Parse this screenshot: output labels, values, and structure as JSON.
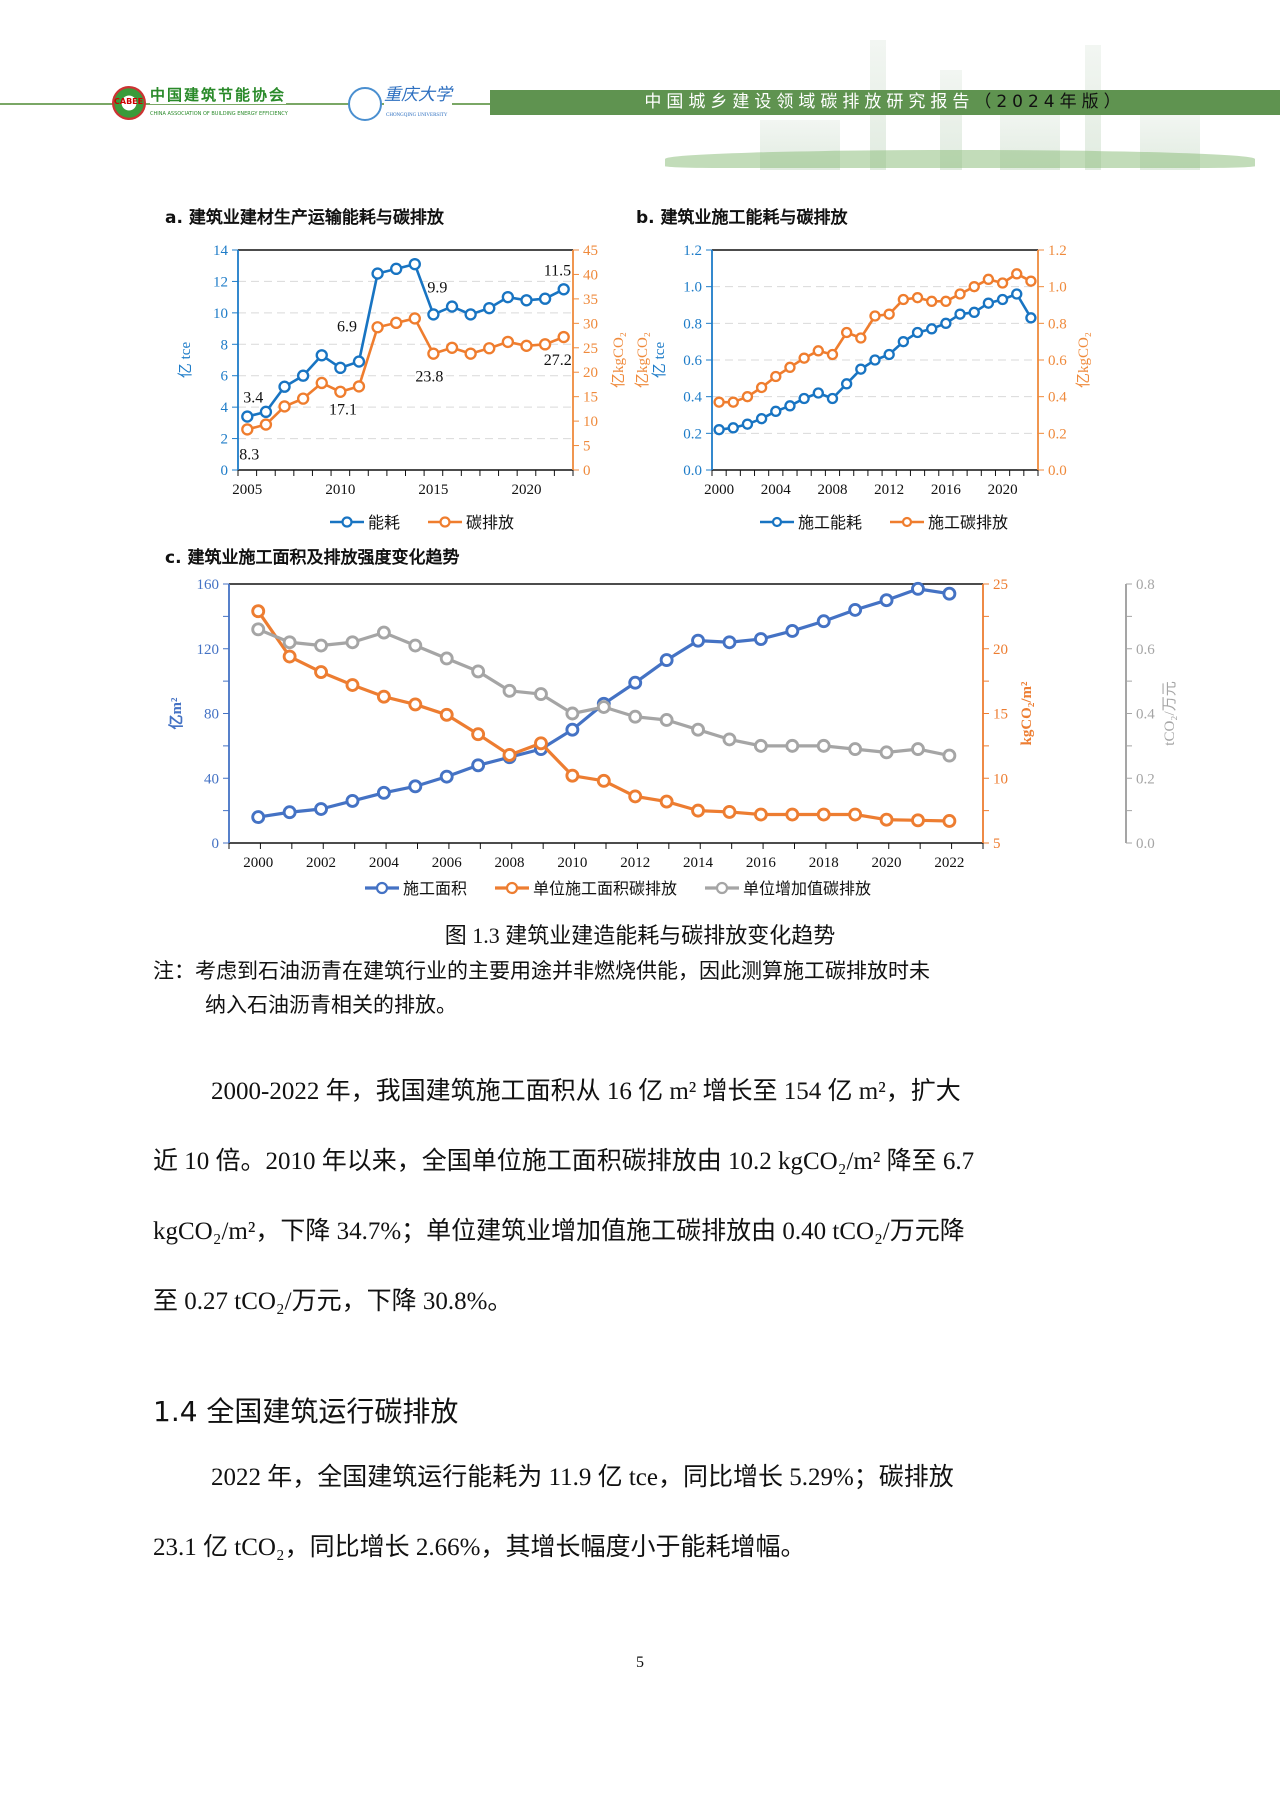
{
  "header": {
    "org1_logo_text": "CABEE",
    "org1_name": "中国建筑节能协会",
    "org1_name_en": "CHINA ASSOCIATION OF BUILDING ENERGY EFFICIENCY",
    "org2_name": "重庆大学",
    "org2_name_en": "CHONGQING UNIVERSITY",
    "report_title": "中国城乡建设领域碳排放研究报告",
    "report_edition": "（2024年版）",
    "bar_color": "#5f9350"
  },
  "chart_data": [
    {
      "type": "line",
      "title": "a. 建筑业建材生产运输能耗与碳排放",
      "categories": [
        2005,
        2006,
        2007,
        2008,
        2009,
        2010,
        2011,
        2012,
        2013,
        2014,
        2015,
        2016,
        2017,
        2018,
        2019,
        2020,
        2021,
        2022
      ],
      "x_tick_labels": [
        "2005",
        "2010",
        "2015",
        "2020"
      ],
      "axes": [
        {
          "side": "left",
          "label": "亿 tce",
          "ylim": [
            0,
            14
          ],
          "ticks": [
            0,
            2,
            4,
            6,
            8,
            10,
            12,
            14
          ],
          "color": "#1e7cc8"
        },
        {
          "side": "right",
          "label": "亿kgCO₂",
          "ylim": [
            0,
            45
          ],
          "ticks": [
            0,
            5,
            10,
            15,
            20,
            25,
            30,
            35,
            40,
            45
          ],
          "color": "#ef8a3c"
        }
      ],
      "series": [
        {
          "name": "能耗",
          "axis": 0,
          "color": "#1874c2",
          "values": [
            3.4,
            3.7,
            5.3,
            6.0,
            7.3,
            6.5,
            6.9,
            12.5,
            12.8,
            13.1,
            9.9,
            10.4,
            9.9,
            10.3,
            11.0,
            10.8,
            10.9,
            11.5
          ]
        },
        {
          "name": "碳排放",
          "axis": 1,
          "color": "#ef7d2e",
          "values": [
            8.3,
            9.3,
            13.0,
            14.6,
            17.8,
            16.0,
            17.1,
            29.2,
            30.1,
            31.0,
            23.8,
            25.0,
            23.8,
            24.9,
            26.2,
            25.4,
            25.7,
            27.2
          ]
        }
      ],
      "annotations": [
        {
          "series": 0,
          "index": 0,
          "text": "3.4"
        },
        {
          "series": 0,
          "index": 6,
          "text": "6.9"
        },
        {
          "series": 0,
          "index": 10,
          "text": "9.9"
        },
        {
          "series": 0,
          "index": 17,
          "text": "11.5"
        },
        {
          "series": 1,
          "index": 0,
          "text": "8.3"
        },
        {
          "series": 1,
          "index": 6,
          "text": "17.1"
        },
        {
          "series": 1,
          "index": 10,
          "text": "23.8"
        },
        {
          "series": 1,
          "index": 17,
          "text": "27.2"
        }
      ],
      "grid": true,
      "legend": "bottom"
    },
    {
      "type": "line",
      "title": "b. 建筑业施工能耗与碳排放",
      "categories": [
        2000,
        2001,
        2002,
        2003,
        2004,
        2005,
        2006,
        2007,
        2008,
        2009,
        2010,
        2011,
        2012,
        2013,
        2014,
        2015,
        2016,
        2017,
        2018,
        2019,
        2020,
        2021,
        2022
      ],
      "x_tick_labels": [
        "2000",
        "2004",
        "2008",
        "2012",
        "2016",
        "2020"
      ],
      "axes": [
        {
          "side": "left",
          "label": "亿 tce",
          "label2": "亿kgCO₂",
          "ylim": [
            0,
            1.2
          ],
          "ticks": [
            "0.0",
            "0.2",
            "0.4",
            "0.6",
            "0.8",
            "1.0",
            "1.2"
          ],
          "color": "#1e7cc8"
        },
        {
          "side": "right",
          "label": "亿kgCO₂",
          "ylim": [
            0,
            1.2
          ],
          "ticks": [
            "0.0",
            "0.2",
            "0.4",
            "0.6",
            "0.8",
            "1.0",
            "1.2"
          ],
          "color": "#ef8a3c"
        }
      ],
      "series": [
        {
          "name": "施工能耗",
          "axis": 0,
          "color": "#1874c2",
          "values": [
            0.22,
            0.23,
            0.25,
            0.28,
            0.32,
            0.35,
            0.39,
            0.42,
            0.39,
            0.47,
            0.55,
            0.6,
            0.63,
            0.7,
            0.75,
            0.77,
            0.8,
            0.85,
            0.86,
            0.91,
            0.93,
            0.96,
            0.83
          ]
        },
        {
          "name": "施工碳排放",
          "axis": 1,
          "color": "#ef7d2e",
          "values": [
            0.37,
            0.37,
            0.4,
            0.45,
            0.51,
            0.56,
            0.61,
            0.65,
            0.63,
            0.75,
            0.72,
            0.84,
            0.85,
            0.93,
            0.94,
            0.92,
            0.92,
            0.96,
            1.0,
            1.04,
            1.02,
            1.07,
            1.03
          ]
        }
      ],
      "grid": true,
      "legend": "bottom"
    },
    {
      "type": "line",
      "title": "c. 建筑业施工面积及排放强度变化趋势",
      "categories": [
        2000,
        2001,
        2002,
        2003,
        2004,
        2005,
        2006,
        2007,
        2008,
        2009,
        2010,
        2011,
        2012,
        2013,
        2014,
        2015,
        2016,
        2017,
        2018,
        2019,
        2020,
        2021,
        2022
      ],
      "x_tick_labels": [
        "2000",
        "2002",
        "2004",
        "2006",
        "2008",
        "2010",
        "2012",
        "2014",
        "2016",
        "2018",
        "2020",
        "2022"
      ],
      "axes": [
        {
          "side": "left",
          "label": "亿m²",
          "ylim": [
            0,
            160
          ],
          "ticks": [
            0,
            40,
            80,
            120,
            160
          ],
          "color": "#4472c4"
        },
        {
          "side": "right",
          "label": "kgCO₂/m²",
          "ylim": [
            5,
            25
          ],
          "ticks": [
            5,
            10,
            15,
            20,
            25
          ],
          "color": "#ed7d31"
        },
        {
          "side": "right2",
          "label": "tCO₂/万元",
          "ylim": [
            0,
            0.8
          ],
          "ticks": [
            "0.0",
            "0.2",
            "0.4",
            "0.6",
            "0.8"
          ],
          "color": "#a5a5a5"
        }
      ],
      "series": [
        {
          "name": "施工面积",
          "axis": 0,
          "color": "#4472c4",
          "values": [
            16,
            19,
            21,
            26,
            31,
            35,
            41,
            48,
            53,
            58,
            70,
            86,
            99,
            113,
            125,
            124,
            126,
            131,
            137,
            144,
            150,
            157,
            154
          ]
        },
        {
          "name": "单位施工面积碳排放",
          "axis": 1,
          "color": "#ed7d31",
          "values": [
            22.9,
            19.4,
            18.2,
            17.2,
            16.3,
            15.7,
            14.9,
            13.4,
            11.8,
            12.7,
            10.2,
            9.8,
            8.6,
            8.2,
            7.5,
            7.4,
            7.2,
            7.2,
            7.2,
            7.2,
            6.8,
            6.75,
            6.7
          ]
        },
        {
          "name": "单位增加值碳排放",
          "axis": 2,
          "color": "#a5a5a5",
          "values": [
            0.66,
            0.62,
            0.61,
            0.62,
            0.65,
            0.61,
            0.57,
            0.53,
            0.47,
            0.46,
            0.4,
            0.42,
            0.39,
            0.38,
            0.35,
            0.32,
            0.3,
            0.3,
            0.3,
            0.29,
            0.28,
            0.29,
            0.27
          ]
        }
      ],
      "grid": false,
      "legend": "bottom"
    }
  ],
  "figure_caption": "图 1.3 建筑业建造能耗与碳排放变化趋势",
  "note": {
    "line1": "注：考虑到石油沥青在建筑行业的主要用途并非燃烧供能，因此测算施工碳排放时未",
    "line2": "纳入石油沥青相关的排放。"
  },
  "paragraph1": [
    "2000-2022 年，我国建筑施工面积从 16 亿 m² 增长至 154 亿 m²，扩大",
    "近 10 倍。2010 年以来，全国单位施工面积碳排放由 10.2 kgCO₂/m² 降至 6.7",
    "kgCO₂/m²，下降 34.7%；单位建筑业增加值施工碳排放由 0.40 tCO₂/万元降",
    "至 0.27 tCO₂/万元，下降 30.8%。"
  ],
  "section_heading": "1.4 全国建筑运行碳排放",
  "paragraph2": [
    "2022 年，全国建筑运行能耗为 11.9 亿 tce，同比增长 5.29%；碳排放",
    "23.1 亿 tCO₂，同比增长 2.66%，其增长幅度小于能耗增幅。"
  ],
  "page_number": "5"
}
